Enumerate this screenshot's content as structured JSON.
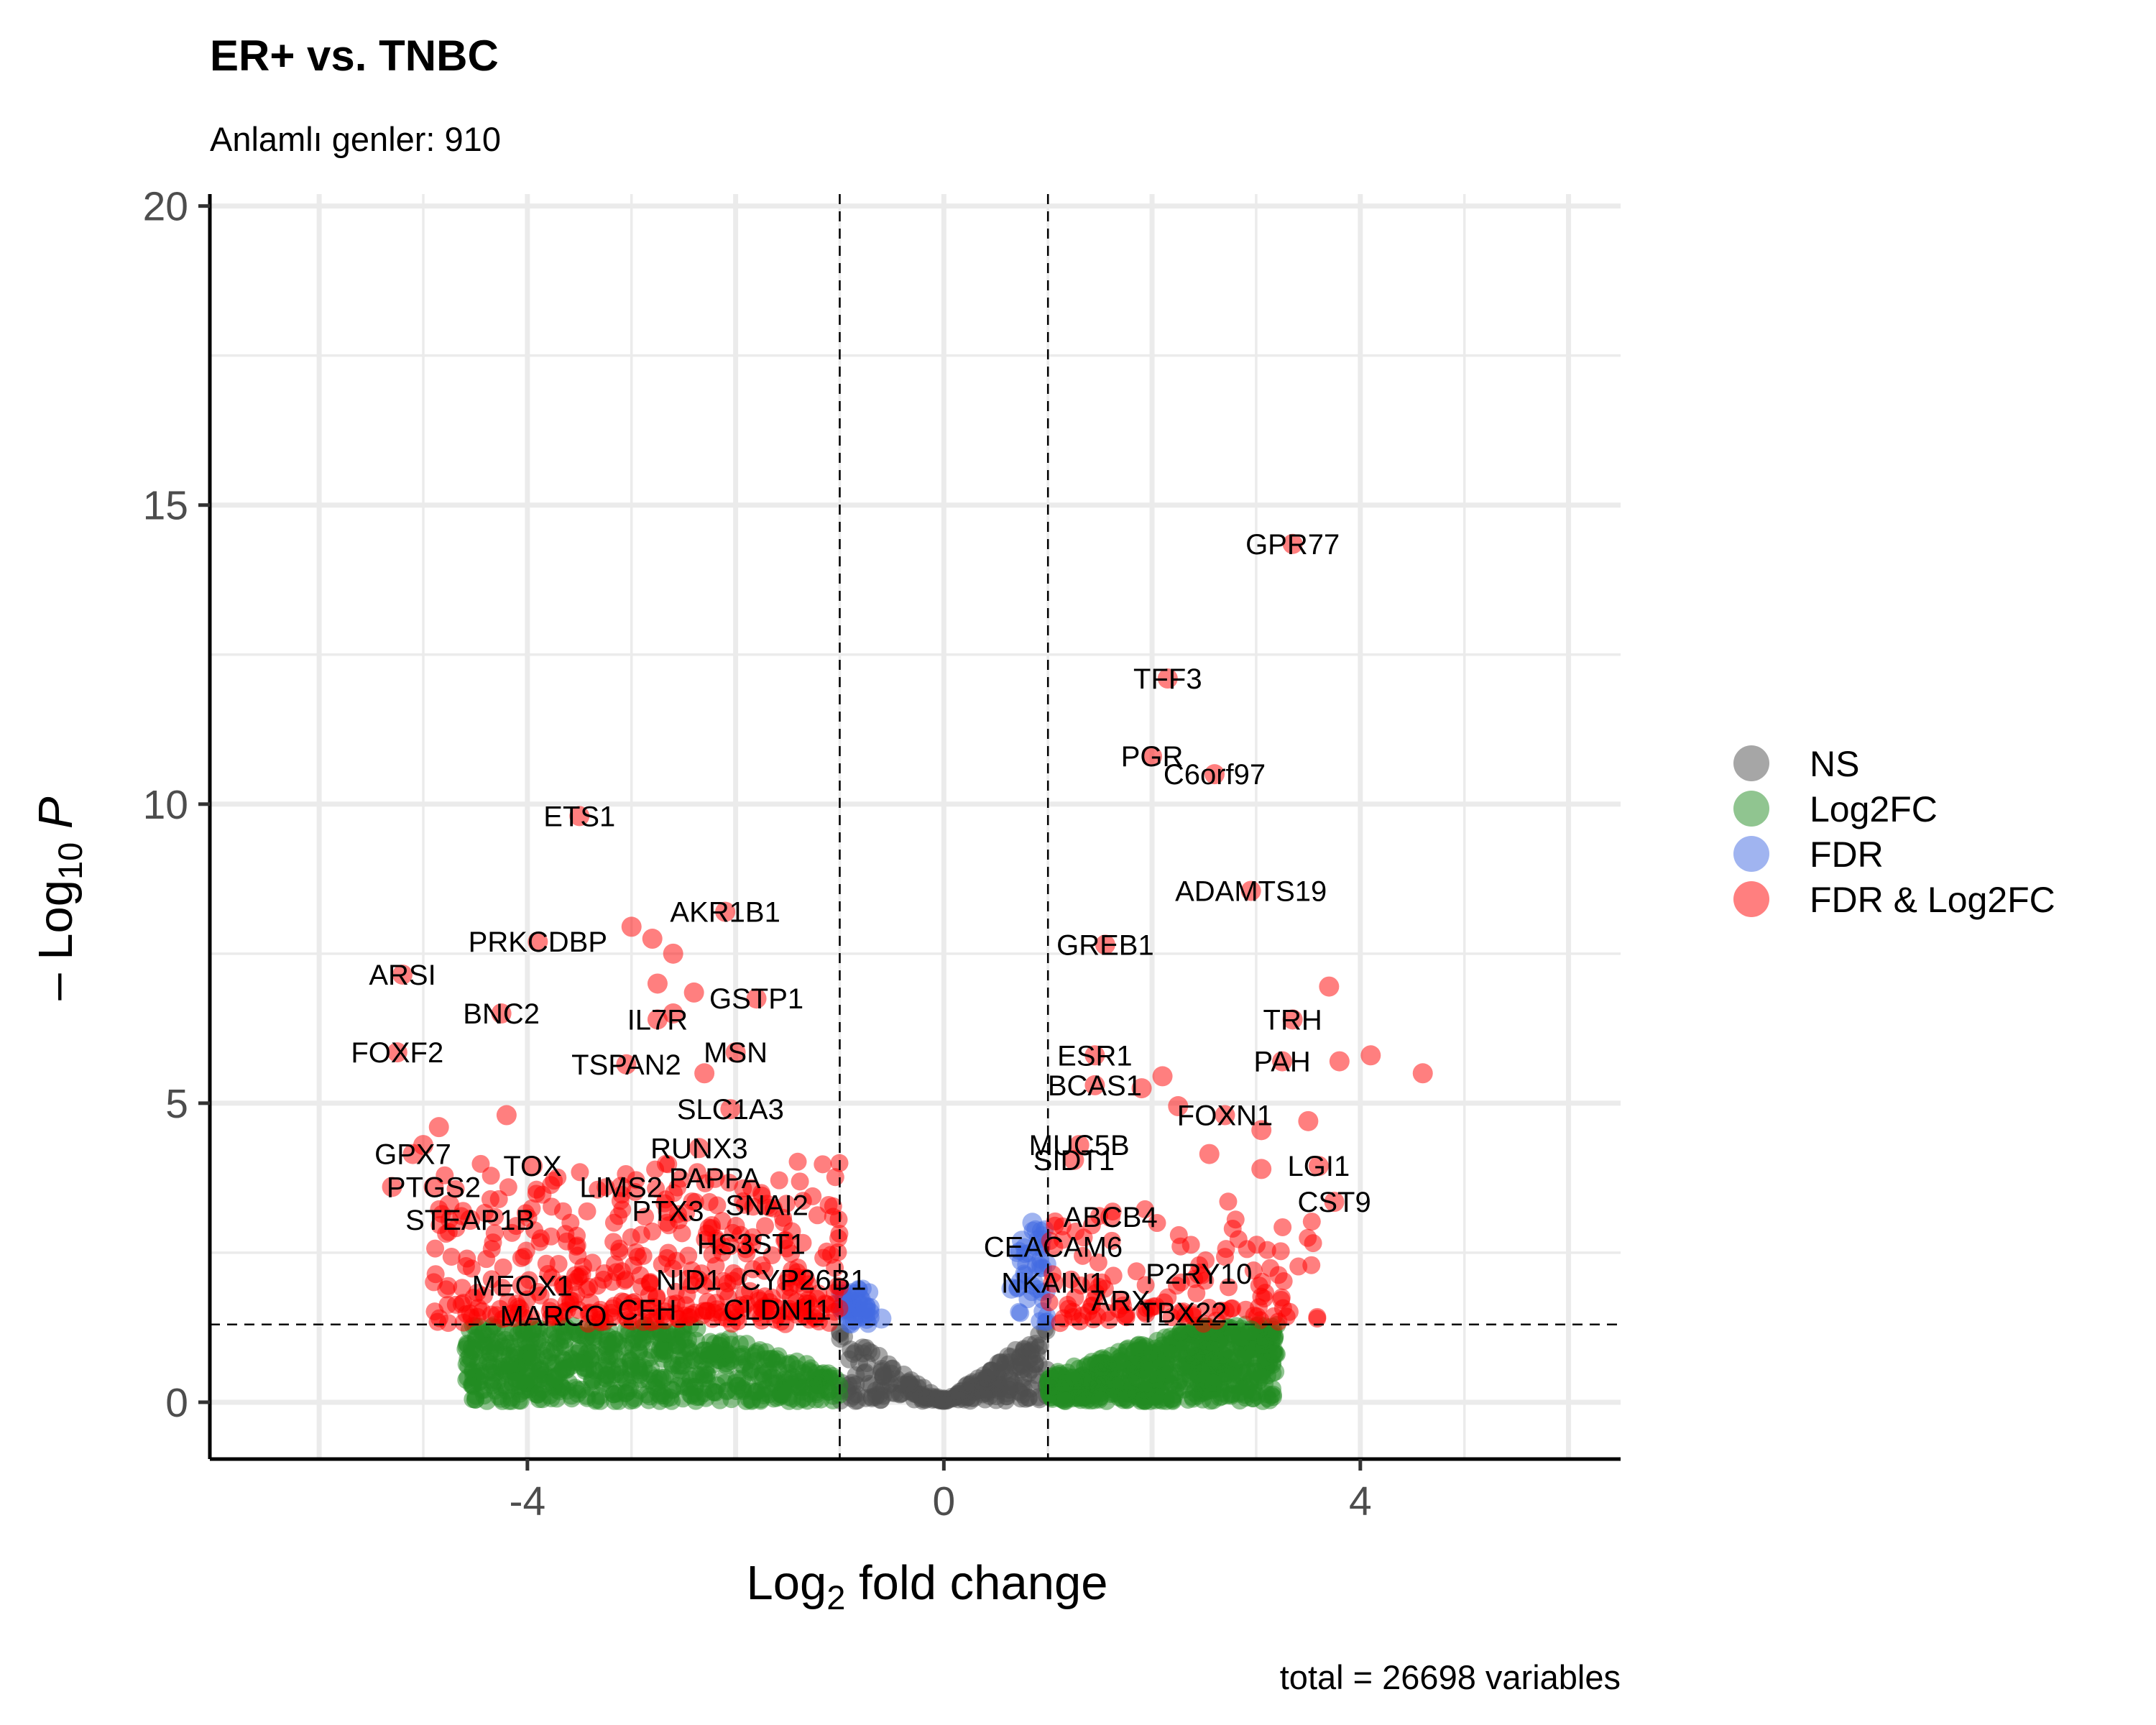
{
  "chart_data": {
    "type": "scatter",
    "title": "ER+ vs. TNBC",
    "subtitle": "Anlamlı genler: 910",
    "xlabel": "Log2 fold change",
    "ylabel": "-Log10 P",
    "caption": "total = 26698 variables",
    "xlim": [
      -7.05,
      6.5
    ],
    "ylim": [
      -0.95,
      20.2
    ],
    "x_ticks": [
      -4,
      0,
      4
    ],
    "y_ticks": [
      0,
      5,
      10,
      15,
      20
    ],
    "grid": true,
    "thresholds": {
      "log2fc": [
        -1,
        1
      ],
      "neg_log10_p": 1.3
    },
    "legend_position": "right",
    "legend": [
      {
        "label": "NS",
        "color": "#4d4d4d"
      },
      {
        "label": "Log2FC",
        "color": "#228b22"
      },
      {
        "label": "FDR",
        "color": "#4169e1"
      },
      {
        "label": "FDR & Log2FC",
        "color": "#ff0000"
      }
    ],
    "labeled_genes": [
      {
        "gene": "GPR77",
        "x": 3.35,
        "y": 14.35
      },
      {
        "gene": "TFF3",
        "x": 2.15,
        "y": 12.1
      },
      {
        "gene": "PGR",
        "x": 2.0,
        "y": 10.8
      },
      {
        "gene": "C6orf97",
        "x": 2.6,
        "y": 10.5
      },
      {
        "gene": "ETS1",
        "x": -3.5,
        "y": 9.8
      },
      {
        "gene": "ADAMTS19",
        "x": 2.95,
        "y": 8.55
      },
      {
        "gene": "AKR1B1",
        "x": -2.1,
        "y": 8.2
      },
      {
        "gene": "PRKCDBP",
        "x": -3.9,
        "y": 7.7
      },
      {
        "gene": "GREB1",
        "x": 1.55,
        "y": 7.65
      },
      {
        "gene": "ARSI",
        "x": -5.2,
        "y": 7.15
      },
      {
        "gene": "GSTP1",
        "x": -1.8,
        "y": 6.75
      },
      {
        "gene": "BNC2",
        "x": -4.25,
        "y": 6.5
      },
      {
        "gene": "IL7R",
        "x": -2.75,
        "y": 6.4
      },
      {
        "gene": "TRH",
        "x": 3.35,
        "y": 6.4
      },
      {
        "gene": "FOXF2",
        "x": -5.25,
        "y": 5.85
      },
      {
        "gene": "TSPAN2",
        "x": -3.05,
        "y": 5.65
      },
      {
        "gene": "MSN",
        "x": -2.0,
        "y": 5.85
      },
      {
        "gene": "ESR1",
        "x": 1.45,
        "y": 5.8
      },
      {
        "gene": "PAH",
        "x": 3.25,
        "y": 5.7
      },
      {
        "gene": "BCAS1",
        "x": 1.45,
        "y": 5.3
      },
      {
        "gene": "SLC1A3",
        "x": -2.05,
        "y": 4.9
      },
      {
        "gene": "FOXN1",
        "x": 2.7,
        "y": 4.8
      },
      {
        "gene": "RUNX3",
        "x": -2.35,
        "y": 4.25
      },
      {
        "gene": "MUC5B",
        "x": 1.3,
        "y": 4.3
      },
      {
        "gene": "GPX7",
        "x": -5.1,
        "y": 4.15
      },
      {
        "gene": "TOX",
        "x": -3.95,
        "y": 3.95
      },
      {
        "gene": "SIDT1",
        "x": 1.25,
        "y": 4.05
      },
      {
        "gene": "LGI1",
        "x": 3.6,
        "y": 3.95
      },
      {
        "gene": "PAPPA",
        "x": -2.2,
        "y": 3.75
      },
      {
        "gene": "LIMS2",
        "x": -3.1,
        "y": 3.6
      },
      {
        "gene": "PTGS2",
        "x": -4.9,
        "y": 3.6
      },
      {
        "gene": "CST9",
        "x": 3.75,
        "y": 3.35
      },
      {
        "gene": "SNAI2",
        "x": -1.7,
        "y": 3.3
      },
      {
        "gene": "PTX3",
        "x": -2.65,
        "y": 3.2
      },
      {
        "gene": "ABCB4",
        "x": 1.6,
        "y": 3.1
      },
      {
        "gene": "STEAP1B",
        "x": -4.55,
        "y": 3.05
      },
      {
        "gene": "HS3ST1",
        "x": -1.85,
        "y": 2.65
      },
      {
        "gene": "CEACAM6",
        "x": 1.05,
        "y": 2.6
      },
      {
        "gene": "NID1",
        "x": -2.45,
        "y": 2.05
      },
      {
        "gene": "CYP26B1",
        "x": -1.35,
        "y": 2.05
      },
      {
        "gene": "P2RY10",
        "x": 2.45,
        "y": 2.15
      },
      {
        "gene": "NKAIN1",
        "x": 1.05,
        "y": 2.0
      },
      {
        "gene": "MEOX1",
        "x": -4.05,
        "y": 1.95
      },
      {
        "gene": "ARX",
        "x": 1.7,
        "y": 1.7
      },
      {
        "gene": "CFH",
        "x": -2.85,
        "y": 1.55
      },
      {
        "gene": "CLDN11",
        "x": -1.6,
        "y": 1.55
      },
      {
        "gene": "TBX22",
        "x": 2.3,
        "y": 1.5
      },
      {
        "gene": "MARCO",
        "x": -3.75,
        "y": 1.45
      }
    ],
    "extra_points": [
      {
        "x": 3.7,
        "y": 6.95,
        "color": "#ff0000"
      },
      {
        "x": 4.1,
        "y": 5.8,
        "color": "#ff0000"
      },
      {
        "x": 4.6,
        "y": 5.5,
        "color": "#ff0000"
      },
      {
        "x": 3.8,
        "y": 5.7,
        "color": "#ff0000"
      },
      {
        "x": -3.0,
        "y": 7.95,
        "color": "#ff0000"
      },
      {
        "x": -2.8,
        "y": 7.75,
        "color": "#ff0000"
      },
      {
        "x": -2.6,
        "y": 7.5,
        "color": "#ff0000"
      },
      {
        "x": -2.75,
        "y": 7.0,
        "color": "#ff0000"
      },
      {
        "x": -2.4,
        "y": 6.85,
        "color": "#ff0000"
      },
      {
        "x": -2.6,
        "y": 6.5,
        "color": "#ff0000"
      },
      {
        "x": -2.3,
        "y": 5.5,
        "color": "#ff0000"
      },
      {
        "x": -4.2,
        "y": 4.8,
        "color": "#ff0000"
      },
      {
        "x": -4.85,
        "y": 4.6,
        "color": "#ff0000"
      },
      {
        "x": -5.0,
        "y": 4.3,
        "color": "#ff0000"
      },
      {
        "x": 2.1,
        "y": 5.45,
        "color": "#ff0000"
      },
      {
        "x": 1.9,
        "y": 5.25,
        "color": "#ff0000"
      },
      {
        "x": 2.25,
        "y": 4.95,
        "color": "#ff0000"
      },
      {
        "x": 3.5,
        "y": 4.7,
        "color": "#ff0000"
      },
      {
        "x": 3.05,
        "y": 4.55,
        "color": "#ff0000"
      },
      {
        "x": 2.55,
        "y": 4.15,
        "color": "#ff0000"
      },
      {
        "x": 3.05,
        "y": 3.9,
        "color": "#ff0000"
      },
      {
        "x": -5.3,
        "y": 3.6,
        "color": "#ff0000"
      },
      {
        "x": -4.75,
        "y": 3.3,
        "color": "#ff0000"
      },
      {
        "x": -0.75,
        "y": 1.6,
        "color": "#4169e1"
      },
      {
        "x": -0.6,
        "y": 1.4,
        "color": "#4169e1"
      },
      {
        "x": 0.85,
        "y": 3.0,
        "color": "#4169e1"
      },
      {
        "x": 0.75,
        "y": 2.7,
        "color": "#4169e1"
      },
      {
        "x": 0.8,
        "y": 2.3,
        "color": "#4169e1"
      },
      {
        "x": 0.65,
        "y": 1.9,
        "color": "#4169e1"
      },
      {
        "x": -4.0,
        "y": 0.8,
        "color": "#228b22"
      },
      {
        "x": 2.6,
        "y": 0.7,
        "color": "#228b22"
      },
      {
        "x": 2.85,
        "y": 1.1,
        "color": "#228b22"
      },
      {
        "x": 2.95,
        "y": 1.2,
        "color": "#228b22"
      }
    ]
  }
}
